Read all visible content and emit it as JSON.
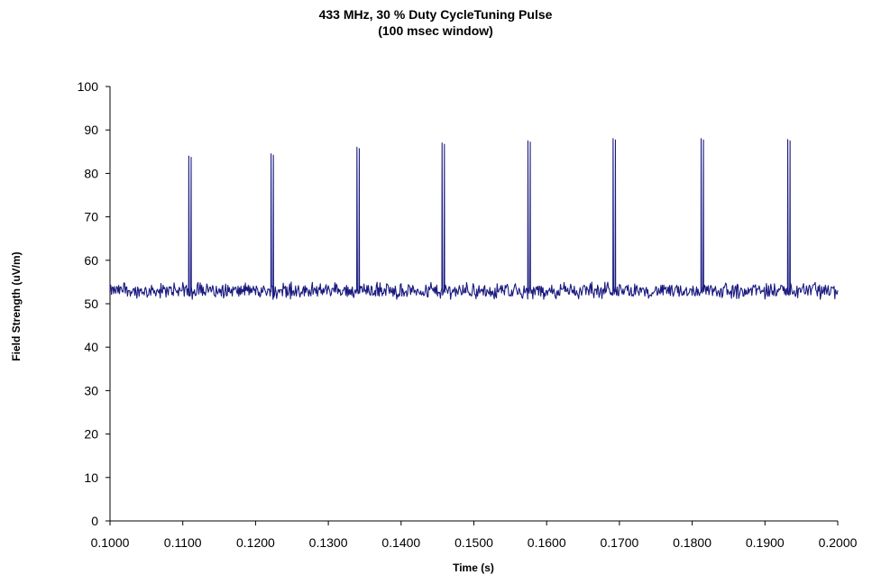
{
  "colors": {
    "series": "#1a1a80",
    "axis": "#000000",
    "background": "#ffffff"
  },
  "chart_data": {
    "type": "line",
    "title": "433 MHz, 30 % Duty CycleTuning Pulse",
    "subtitle": "(100 msec window)",
    "xlabel": "Time (s)",
    "ylabel": "Field Strength  (uV/m)",
    "xlim": [
      0.1,
      0.2
    ],
    "ylim": [
      0,
      100
    ],
    "xticks": [
      "0.1000",
      "0.1100",
      "0.1200",
      "0.1300",
      "0.1400",
      "0.1500",
      "0.1600",
      "0.1700",
      "0.1800",
      "0.1900",
      "0.2000"
    ],
    "yticks": [
      "0",
      "10",
      "20",
      "30",
      "40",
      "50",
      "60",
      "70",
      "80",
      "90",
      "100"
    ],
    "grid": false,
    "legend": "none",
    "series": [
      {
        "baseline": 53,
        "noise_range": [
          51,
          55
        ],
        "sample_interval": 0.0001,
        "pulses": [
          {
            "x": 0.1108,
            "y": 84
          },
          {
            "x": 0.1221,
            "y": 84.5
          },
          {
            "x": 0.1339,
            "y": 86
          },
          {
            "x": 0.1456,
            "y": 87
          },
          {
            "x": 0.1574,
            "y": 87.5
          },
          {
            "x": 0.1691,
            "y": 88
          },
          {
            "x": 0.1812,
            "y": 88
          },
          {
            "x": 0.1931,
            "y": 87.8
          }
        ]
      }
    ]
  }
}
